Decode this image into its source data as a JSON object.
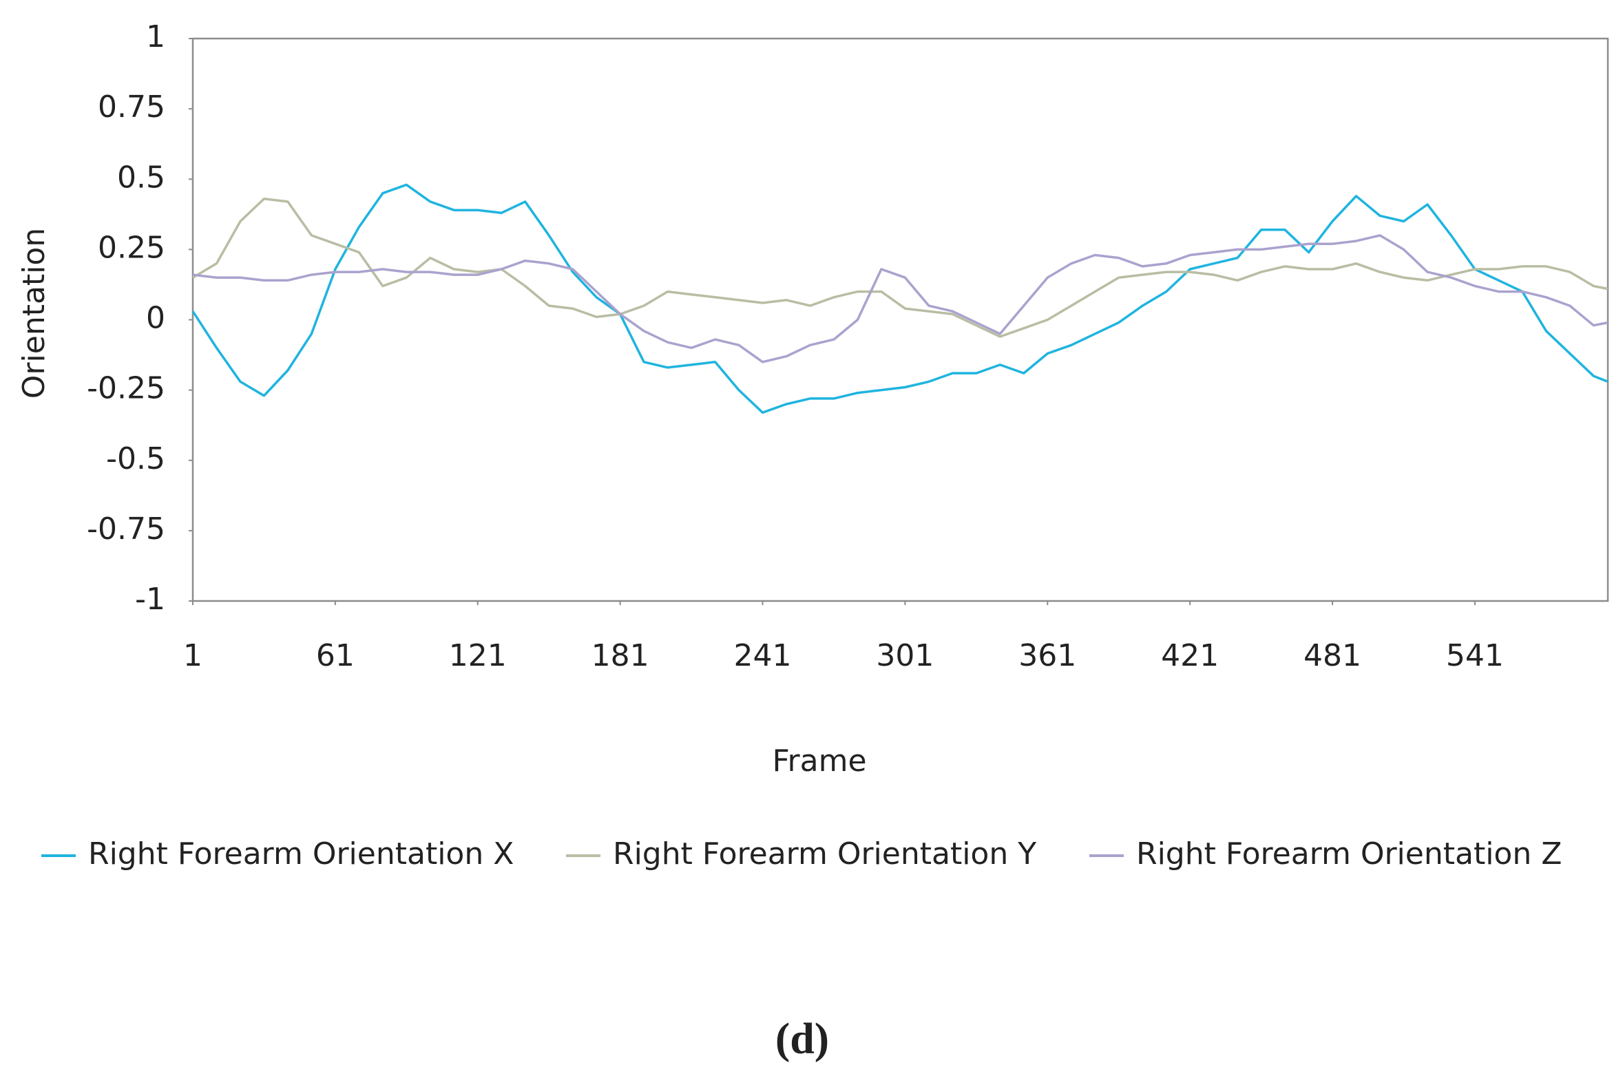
{
  "chart_data": {
    "type": "line",
    "x_label": "Frame",
    "y_label": "Orientation",
    "caption": "(d)",
    "xlim": [
      1,
      597
    ],
    "xticks": [
      1,
      61,
      121,
      181,
      241,
      301,
      361,
      421,
      481,
      541
    ],
    "ylim": [
      -1,
      1
    ],
    "yticks": [
      -1,
      -0.75,
      -0.5,
      -0.25,
      0,
      0.25,
      0.5,
      0.75,
      1
    ],
    "grid": false,
    "legend": "bottom",
    "x": [
      1,
      11,
      21,
      31,
      41,
      51,
      61,
      71,
      81,
      91,
      101,
      111,
      121,
      131,
      141,
      151,
      161,
      171,
      181,
      191,
      201,
      211,
      221,
      231,
      241,
      251,
      261,
      271,
      281,
      291,
      301,
      311,
      321,
      331,
      341,
      351,
      361,
      371,
      381,
      391,
      401,
      411,
      421,
      431,
      441,
      451,
      461,
      471,
      481,
      491,
      501,
      511,
      521,
      531,
      541,
      551,
      561,
      571,
      581,
      591,
      597
    ],
    "series": [
      {
        "name": "Right Forearm Orientation X",
        "color": "#1fb4df",
        "values": [
          0.03,
          -0.1,
          -0.22,
          -0.27,
          -0.18,
          -0.05,
          0.18,
          0.33,
          0.45,
          0.48,
          0.42,
          0.39,
          0.39,
          0.38,
          0.42,
          0.3,
          0.17,
          0.08,
          0.02,
          -0.15,
          -0.17,
          -0.16,
          -0.15,
          -0.25,
          -0.33,
          -0.3,
          -0.28,
          -0.28,
          -0.26,
          -0.25,
          -0.24,
          -0.22,
          -0.19,
          -0.19,
          -0.16,
          -0.19,
          -0.12,
          -0.09,
          -0.05,
          -0.01,
          0.05,
          0.1,
          0.18,
          0.2,
          0.22,
          0.32,
          0.32,
          0.24,
          0.35,
          0.44,
          0.37,
          0.35,
          0.41,
          0.3,
          0.18,
          0.14,
          0.1,
          -0.04,
          -0.12,
          -0.2,
          -0.22
        ]
      },
      {
        "name": "Right Forearm Orientation Y",
        "color": "#b7bea3",
        "values": [
          0.15,
          0.2,
          0.35,
          0.43,
          0.42,
          0.3,
          0.27,
          0.24,
          0.12,
          0.15,
          0.22,
          0.18,
          0.17,
          0.18,
          0.12,
          0.05,
          0.04,
          0.01,
          0.02,
          0.05,
          0.1,
          0.09,
          0.08,
          0.07,
          0.06,
          0.07,
          0.05,
          0.08,
          0.1,
          0.1,
          0.04,
          0.03,
          0.02,
          -0.02,
          -0.06,
          -0.03,
          0.0,
          0.05,
          0.1,
          0.15,
          0.16,
          0.17,
          0.17,
          0.16,
          0.14,
          0.17,
          0.19,
          0.18,
          0.18,
          0.2,
          0.17,
          0.15,
          0.14,
          0.16,
          0.18,
          0.18,
          0.19,
          0.19,
          0.17,
          0.12,
          0.11
        ]
      },
      {
        "name": "Right Forearm Orientation Z",
        "color": "#aaa2ce",
        "values": [
          0.16,
          0.15,
          0.15,
          0.14,
          0.14,
          0.16,
          0.17,
          0.17,
          0.18,
          0.17,
          0.17,
          0.16,
          0.16,
          0.18,
          0.21,
          0.2,
          0.18,
          0.1,
          0.02,
          -0.04,
          -0.08,
          -0.1,
          -0.07,
          -0.09,
          -0.15,
          -0.13,
          -0.09,
          -0.07,
          0.0,
          0.18,
          0.15,
          0.05,
          0.03,
          -0.01,
          -0.05,
          0.05,
          0.15,
          0.2,
          0.23,
          0.22,
          0.19,
          0.2,
          0.23,
          0.24,
          0.25,
          0.25,
          0.26,
          0.27,
          0.27,
          0.28,
          0.3,
          0.25,
          0.17,
          0.15,
          0.12,
          0.1,
          0.1,
          0.08,
          0.05,
          -0.02,
          -0.01
        ]
      }
    ]
  }
}
